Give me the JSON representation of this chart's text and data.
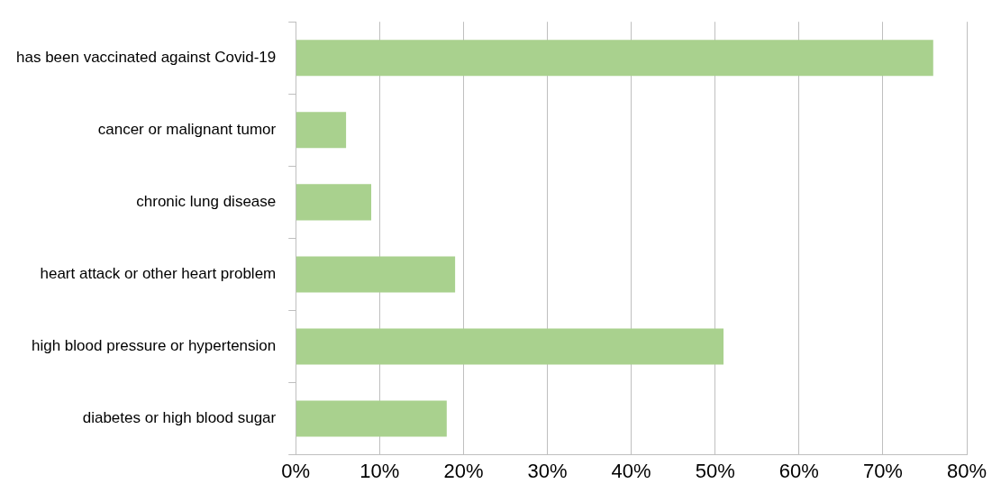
{
  "chart_data": {
    "type": "bar",
    "orientation": "horizontal",
    "categories": [
      "has been vaccinated against Covid-19",
      "cancer or malignant tumor",
      "chronic lung disease",
      "heart attack or other heart problem",
      "high blood pressure or hypertension",
      "diabetes or high blood sugar"
    ],
    "values": [
      76,
      6,
      9,
      19,
      51,
      18
    ],
    "color": "#a9d18e",
    "xlim": [
      0,
      80
    ],
    "xticks": [
      {
        "value": 0,
        "label": "0%"
      },
      {
        "value": 10,
        "label": "10%"
      },
      {
        "value": 20,
        "label": "20%"
      },
      {
        "value": 30,
        "label": "30%"
      },
      {
        "value": 40,
        "label": "40%"
      },
      {
        "value": 50,
        "label": "50%"
      },
      {
        "value": 60,
        "label": "60%"
      },
      {
        "value": 70,
        "label": "70%"
      },
      {
        "value": 80,
        "label": "80%"
      }
    ],
    "grid": "x",
    "legend": false
  }
}
